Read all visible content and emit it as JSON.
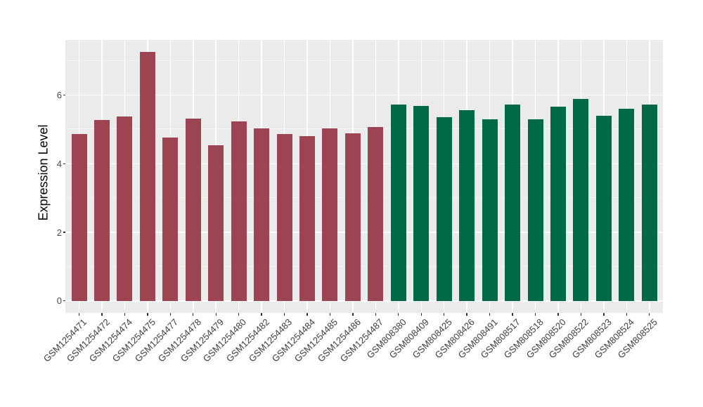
{
  "chart_data": {
    "type": "bar",
    "title": "",
    "xlabel": "",
    "ylabel": "Expression Level",
    "ylim": [
      0,
      7.61
    ],
    "y_ticks": [
      0,
      2,
      4,
      6
    ],
    "y_minor_ticks": [
      1,
      3,
      5,
      7
    ],
    "grid": "on",
    "legend": "none",
    "categories": [
      "GSM1254471",
      "GSM1254472",
      "GSM1254474",
      "GSM1254475",
      "GSM1254477",
      "GSM1254478",
      "GSM1254479",
      "GSM1254480",
      "GSM1254482",
      "GSM1254483",
      "GSM1254484",
      "GSM1254485",
      "GSM1254486",
      "GSM1254487",
      "GSM808380",
      "GSM808409",
      "GSM808425",
      "GSM808426",
      "GSM808491",
      "GSM808517",
      "GSM808518",
      "GSM808520",
      "GSM808522",
      "GSM808523",
      "GSM808524",
      "GSM808525"
    ],
    "values": [
      4.87,
      5.27,
      5.38,
      7.26,
      4.77,
      5.31,
      4.54,
      5.23,
      5.02,
      4.87,
      4.8,
      5.04,
      4.89,
      5.08,
      5.72,
      5.69,
      5.36,
      5.56,
      5.3,
      5.72,
      5.3,
      5.66,
      5.9,
      5.4,
      5.61,
      5.73
    ],
    "bar_groups": [
      "group1",
      "group1",
      "group1",
      "group1",
      "group1",
      "group1",
      "group1",
      "group1",
      "group1",
      "group1",
      "group1",
      "group1",
      "group1",
      "group1",
      "group2",
      "group2",
      "group2",
      "group2",
      "group2",
      "group2",
      "group2",
      "group2",
      "group2",
      "group2",
      "group2",
      "group2"
    ],
    "group_colors": {
      "group1": "#9C4451",
      "group2": "#006948"
    }
  },
  "colors": {
    "panel_background": "#EBEBEB",
    "gridline": "#FFFFFF",
    "axis_text": "#4A4A4A",
    "axis_title": "#000000",
    "tick_mark": "#333333",
    "figure_background": "#FFFFFF"
  }
}
